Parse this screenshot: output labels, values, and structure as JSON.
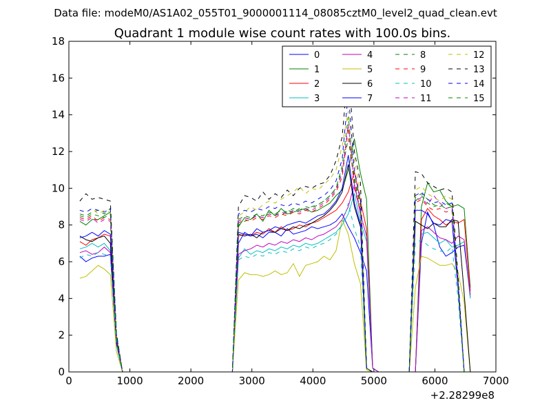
{
  "figure": {
    "suptitle": "Data file: modeM0/AS1A02_055T01_9000001114_08085cztM0_level2_quad_clean.evt"
  },
  "chart_data": {
    "type": "line",
    "title": "Quadrant 1 module wise count rates with 100.0s bins.",
    "xlabel": "",
    "ylabel": "",
    "x_offset_label": "+2.28299e8",
    "xlim": [
      0,
      7000
    ],
    "ylim": [
      0,
      18
    ],
    "x_ticks": [
      0,
      1000,
      2000,
      3000,
      4000,
      5000,
      6000,
      7000
    ],
    "y_ticks": [
      0,
      2,
      4,
      6,
      8,
      10,
      12,
      14,
      16,
      18
    ],
    "grid": false,
    "legend_position": "top-right",
    "legend_columns": 4,
    "x": [
      180,
      280,
      380,
      480,
      580,
      680,
      780,
      880,
      980,
      1080,
      1180,
      1280,
      1380,
      1480,
      1580,
      1680,
      1780,
      1880,
      1980,
      2080,
      2180,
      2280,
      2380,
      2480,
      2580,
      2680,
      2780,
      2880,
      2980,
      3080,
      3180,
      3280,
      3380,
      3480,
      3580,
      3680,
      3780,
      3880,
      3980,
      4080,
      4180,
      4280,
      4380,
      4480,
      4580,
      4680,
      4780,
      4880,
      4980,
      5080,
      5180,
      5280,
      5380,
      5480,
      5580,
      5680,
      5780,
      5880,
      5980,
      6080,
      6180,
      6280,
      6380,
      6480,
      6580
    ],
    "series": [
      {
        "name": "0",
        "color": "#0000ff",
        "dash": "solid",
        "values": [
          6.3,
          6.0,
          6.2,
          6.3,
          6.3,
          6.4,
          1.5,
          0,
          0,
          0,
          0,
          0,
          0,
          0,
          0,
          0,
          0,
          0,
          0,
          0,
          0,
          0,
          0,
          0,
          0,
          0,
          7.0,
          7.6,
          7.4,
          7.5,
          7.3,
          7.6,
          7.6,
          7.4,
          7.8,
          7.5,
          7.6,
          7.7,
          7.9,
          7.8,
          7.9,
          8.0,
          8.2,
          8.6,
          7.9,
          7.3,
          6.5,
          5.5,
          0.2,
          0,
          0,
          0,
          0,
          0,
          0,
          0,
          7.0,
          8.7,
          8.0,
          6.8,
          6.3,
          6.5,
          6.8,
          6.9,
          4.1
        ]
      },
      {
        "name": "1",
        "color": "#008000",
        "dash": "solid",
        "values": [
          8.2,
          8.0,
          8.3,
          8.3,
          8.5,
          8.7,
          1.8,
          0,
          0,
          0,
          0,
          0,
          0,
          0,
          0,
          0,
          0,
          0,
          0,
          0,
          0,
          0,
          0,
          0,
          0,
          0,
          7.9,
          8.4,
          8.3,
          8.6,
          8.2,
          8.8,
          8.5,
          8.9,
          8.6,
          8.7,
          8.8,
          8.9,
          8.7,
          8.8,
          9.0,
          9.2,
          9.6,
          9.9,
          11.0,
          12.7,
          10.8,
          9.4,
          0.2,
          0,
          0,
          0,
          0,
          0,
          0,
          0,
          9.0,
          10.3,
          9.8,
          9.9,
          9.3,
          9.0,
          9.1,
          8.9,
          4.6
        ]
      },
      {
        "name": "2",
        "color": "#ff0000",
        "dash": "solid",
        "values": [
          7.1,
          6.9,
          7.2,
          7.3,
          7.5,
          7.4,
          1.7,
          0,
          0,
          0,
          0,
          0,
          0,
          0,
          0,
          0,
          0,
          0,
          0,
          0,
          0,
          0,
          0,
          0,
          0,
          0,
          7.4,
          7.5,
          7.4,
          7.6,
          7.5,
          7.8,
          7.6,
          7.9,
          7.7,
          7.8,
          8.0,
          7.9,
          8.1,
          8.2,
          8.4,
          8.6,
          8.8,
          9.2,
          9.8,
          10.9,
          9.3,
          7.8,
          0.2,
          0,
          0,
          0,
          0,
          0,
          0,
          0,
          8.3,
          8.9,
          8.5,
          8.3,
          8.0,
          8.2,
          8.1,
          8.3,
          4.4
        ]
      },
      {
        "name": "3",
        "color": "#00bfbf",
        "dash": "solid",
        "values": [
          6.7,
          6.8,
          7.0,
          6.8,
          7.0,
          6.6,
          1.6,
          0,
          0,
          0,
          0,
          0,
          0,
          0,
          0,
          0,
          0,
          0,
          0,
          0,
          0,
          0,
          0,
          0,
          0,
          0,
          6.2,
          6.7,
          6.4,
          6.6,
          6.5,
          6.7,
          6.6,
          6.8,
          6.7,
          6.9,
          6.8,
          7.0,
          6.9,
          7.0,
          7.2,
          7.4,
          7.6,
          8.0,
          8.6,
          9.7,
          8.2,
          7.1,
          0.2,
          0,
          0,
          0,
          0,
          0,
          0,
          0,
          7.5,
          7.6,
          7.3,
          7.0,
          7.2,
          6.8,
          6.9,
          7.1,
          4.0
        ]
      },
      {
        "name": "4",
        "color": "#bf00bf",
        "dash": "solid",
        "values": [
          6.5,
          6.6,
          6.4,
          6.5,
          6.8,
          6.5,
          1.6,
          0,
          0,
          0,
          0,
          0,
          0,
          0,
          0,
          0,
          0,
          0,
          0,
          0,
          0,
          0,
          0,
          0,
          0,
          0,
          6.4,
          6.6,
          6.7,
          6.9,
          6.8,
          7.0,
          6.9,
          7.1,
          7.0,
          7.2,
          7.1,
          7.3,
          7.2,
          7.4,
          7.5,
          7.7,
          7.9,
          8.3,
          9.0,
          10.2,
          8.6,
          7.4,
          0.2,
          0,
          0,
          0,
          0,
          0,
          0,
          0,
          7.7,
          7.9,
          7.6,
          7.3,
          7.2,
          7.0,
          7.4,
          7.2,
          4.2
        ]
      },
      {
        "name": "5",
        "color": "#bfbf00",
        "dash": "solid",
        "values": [
          5.1,
          5.2,
          5.5,
          5.8,
          5.6,
          5.3,
          1.1,
          0,
          0,
          0,
          0,
          0,
          0,
          0,
          0,
          0,
          0,
          0,
          0,
          0,
          0,
          0,
          0,
          0,
          0,
          0,
          5.0,
          5.4,
          5.3,
          5.3,
          5.2,
          5.3,
          5.5,
          5.3,
          5.4,
          5.9,
          5.2,
          5.8,
          5.9,
          6.0,
          6.3,
          6.1,
          6.6,
          8.3,
          7.5,
          5.9,
          4.8,
          0.1,
          0,
          0,
          0,
          0,
          0,
          0,
          0,
          4.6,
          6.3,
          6.2,
          6.0,
          5.8,
          5.8,
          5.9,
          5.4,
          3.8,
          0
        ]
      },
      {
        "name": "6",
        "color": "#000000",
        "dash": "solid",
        "values": [
          7.4,
          7.2,
          7.1,
          7.3,
          7.4,
          7.0,
          1.7,
          0,
          0,
          0,
          0,
          0,
          0,
          0,
          0,
          0,
          0,
          0,
          0,
          0,
          0,
          0,
          0,
          0,
          0,
          0,
          7.5,
          7.4,
          7.5,
          7.3,
          7.6,
          7.7,
          7.6,
          7.8,
          7.7,
          7.9,
          7.8,
          8.0,
          8.1,
          8.3,
          8.5,
          8.8,
          9.2,
          9.8,
          11.3,
          9.0,
          7.9,
          0.2,
          0,
          0,
          0,
          0,
          0,
          0,
          0,
          8.2,
          8.0,
          7.8,
          8.1,
          7.9,
          7.9,
          8.3,
          8.2,
          4.3,
          0
        ]
      },
      {
        "name": "7",
        "color": "#0000ff",
        "dash": "solid",
        "values": [
          7.3,
          7.4,
          7.6,
          7.4,
          7.7,
          7.5,
          1.8,
          0,
          0,
          0,
          0,
          0,
          0,
          0,
          0,
          0,
          0,
          0,
          0,
          0,
          0,
          0,
          0,
          0,
          0,
          0,
          7.6,
          7.5,
          7.4,
          7.8,
          7.6,
          7.7,
          7.9,
          7.8,
          8.0,
          8.1,
          8.2,
          8.1,
          8.3,
          8.5,
          8.6,
          8.9,
          9.3,
          10.0,
          11.8,
          9.2,
          8.0,
          0.2,
          0,
          0,
          0,
          0,
          0,
          0,
          0,
          8.8,
          8.8,
          8.6,
          8.1,
          8.0,
          8.3,
          8.2,
          4.5,
          0,
          0
        ]
      },
      {
        "name": "8",
        "color": "#008000",
        "dash": "dashed",
        "values": [
          8.6,
          8.5,
          8.7,
          8.8,
          8.6,
          8.9,
          2.0,
          0,
          0,
          0,
          0,
          0,
          0,
          0,
          0,
          0,
          0,
          0,
          0,
          0,
          0,
          0,
          0,
          0,
          0,
          0,
          8.0,
          8.2,
          8.3,
          8.5,
          8.4,
          8.6,
          8.6,
          8.5,
          8.8,
          8.7,
          8.9,
          8.8,
          9.0,
          9.1,
          9.3,
          9.6,
          10.0,
          11.0,
          12.7,
          10.4,
          9.0,
          0.2,
          0,
          0,
          0,
          0,
          0,
          0,
          0,
          9.5,
          9.7,
          9.4,
          9.1,
          9.0,
          9.2,
          9.0,
          4.8,
          0,
          0
        ]
      },
      {
        "name": "9",
        "color": "#ff0000",
        "dash": "dashed",
        "values": [
          8.4,
          8.3,
          8.5,
          8.2,
          8.4,
          8.3,
          1.9,
          0,
          0,
          0,
          0,
          0,
          0,
          0,
          0,
          0,
          0,
          0,
          0,
          0,
          0,
          0,
          0,
          0,
          0,
          0,
          8.1,
          8.3,
          8.2,
          8.4,
          8.3,
          8.5,
          8.4,
          8.6,
          8.5,
          8.7,
          8.6,
          8.8,
          8.7,
          8.9,
          9.1,
          9.4,
          9.8,
          10.6,
          13.3,
          10.0,
          8.7,
          0.2,
          0,
          0,
          0,
          0,
          0,
          0,
          0,
          9.2,
          9.4,
          9.0,
          8.8,
          8.9,
          8.7,
          8.8,
          4.7,
          0,
          0
        ]
      },
      {
        "name": "10",
        "color": "#00bfbf",
        "dash": "dashed",
        "values": [
          6.2,
          6.4,
          6.3,
          6.5,
          6.4,
          6.3,
          1.5,
          0,
          0,
          0,
          0,
          0,
          0,
          0,
          0,
          0,
          0,
          0,
          0,
          0,
          0,
          0,
          0,
          0,
          0,
          0,
          6.1,
          6.3,
          6.2,
          6.4,
          6.3,
          6.5,
          6.4,
          6.6,
          6.5,
          6.7,
          6.6,
          6.8,
          6.7,
          6.9,
          7.0,
          7.2,
          7.5,
          8.0,
          9.2,
          7.8,
          6.8,
          0.2,
          0,
          0,
          0,
          0,
          0,
          0,
          0,
          7.0,
          7.2,
          6.9,
          6.7,
          6.6,
          6.5,
          6.8,
          4.0,
          0,
          0
        ]
      },
      {
        "name": "11",
        "color": "#bf00bf",
        "dash": "dashed",
        "values": [
          8.3,
          8.2,
          8.4,
          8.1,
          8.3,
          8.2,
          1.9,
          0,
          0,
          0,
          0,
          0,
          0,
          0,
          0,
          0,
          0,
          0,
          0,
          0,
          0,
          0,
          0,
          0,
          0,
          0,
          8.2,
          8.4,
          8.3,
          8.5,
          8.4,
          8.6,
          8.5,
          8.7,
          8.6,
          8.8,
          8.7,
          8.9,
          8.8,
          9.0,
          9.2,
          9.5,
          9.9,
          10.8,
          13.5,
          10.2,
          8.8,
          0.2,
          0,
          0,
          0,
          0,
          0,
          0,
          0,
          9.3,
          9.5,
          9.1,
          9.6,
          9.2,
          8.9,
          9.0,
          4.8,
          0,
          0
        ]
      },
      {
        "name": "12",
        "color": "#bfbf00",
        "dash": "dashed",
        "values": [
          8.8,
          8.7,
          8.9,
          8.6,
          8.8,
          8.7,
          2.0,
          0,
          0,
          0,
          0,
          0,
          0,
          0,
          0,
          0,
          0,
          0,
          0,
          0,
          0,
          0,
          0,
          0,
          0,
          0,
          8.5,
          8.7,
          9.0,
          8.8,
          9.1,
          9.3,
          9.2,
          9.4,
          9.6,
          9.8,
          10.1,
          9.7,
          10.0,
          9.9,
          10.2,
          10.5,
          11.0,
          12.3,
          14.2,
          11.5,
          9.8,
          0.2,
          0,
          0,
          0,
          0,
          0,
          0,
          0,
          9.9,
          10.1,
          9.7,
          9.5,
          9.3,
          9.6,
          9.4,
          5.0,
          0,
          0
        ]
      },
      {
        "name": "13",
        "color": "#000000",
        "dash": "dashed",
        "values": [
          9.3,
          9.7,
          9.4,
          9.5,
          9.4,
          9.3,
          2.1,
          0,
          0,
          0,
          0,
          0,
          0,
          0,
          0,
          0,
          0,
          0,
          0,
          0,
          0,
          0,
          0,
          0,
          0,
          0,
          9.0,
          9.6,
          9.5,
          9.3,
          9.8,
          9.4,
          9.7,
          9.5,
          9.9,
          9.6,
          10.0,
          10.1,
          10.0,
          10.2,
          10.3,
          10.7,
          11.5,
          12.8,
          16.6,
          12.0,
          10.3,
          0.2,
          0,
          0,
          0,
          0,
          0,
          0,
          0,
          10.9,
          10.8,
          10.3,
          10.1,
          9.9,
          10.0,
          9.8,
          5.2,
          0,
          0
        ]
      },
      {
        "name": "14",
        "color": "#0000ff",
        "dash": "dashed",
        "values": [
          8.8,
          8.7,
          8.9,
          8.8,
          8.7,
          8.9,
          2.0,
          0,
          0,
          0,
          0,
          0,
          0,
          0,
          0,
          0,
          0,
          0,
          0,
          0,
          0,
          0,
          0,
          0,
          0,
          0,
          8.6,
          8.8,
          8.7,
          8.9,
          8.8,
          9.0,
          8.9,
          9.1,
          9.0,
          9.2,
          9.1,
          9.3,
          9.2,
          9.4,
          9.6,
          9.9,
          10.4,
          11.6,
          15.2,
          11.0,
          9.4,
          0.2,
          0,
          0,
          0,
          0,
          0,
          0,
          0,
          9.6,
          9.8,
          9.4,
          9.2,
          9.3,
          9.1,
          9.2,
          4.9,
          0,
          0
        ]
      },
      {
        "name": "15",
        "color": "#008000",
        "dash": "dashed",
        "values": [
          8.5,
          8.4,
          8.6,
          8.5,
          8.4,
          8.6,
          1.9,
          0,
          0,
          0,
          0,
          0,
          0,
          0,
          0,
          0,
          0,
          0,
          0,
          0,
          0,
          0,
          0,
          0,
          0,
          0,
          8.3,
          8.5,
          8.4,
          8.6,
          8.5,
          8.7,
          8.6,
          8.8,
          8.7,
          8.9,
          8.8,
          9.0,
          8.9,
          9.1,
          9.3,
          9.6,
          10.0,
          11.2,
          13.9,
          10.6,
          9.1,
          0.2,
          0,
          0,
          0,
          0,
          0,
          0,
          0,
          9.3,
          9.6,
          9.2,
          9.0,
          9.1,
          8.9,
          9.0,
          4.7,
          0,
          0
        ]
      }
    ]
  }
}
